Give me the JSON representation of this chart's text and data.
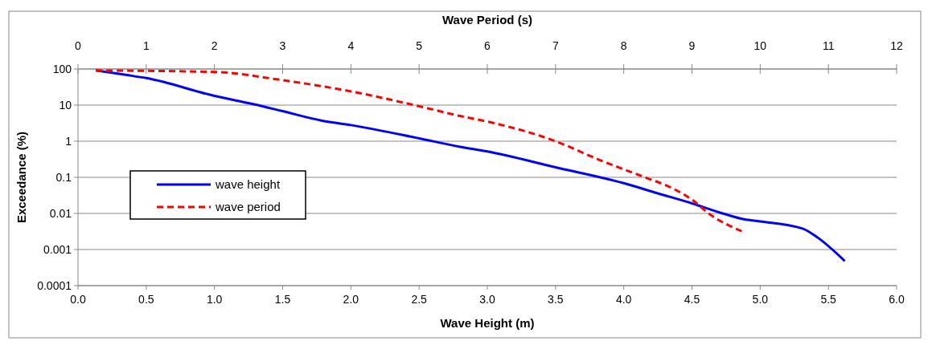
{
  "chart_data": {
    "type": "line",
    "xlabel": "Wave Height (m)",
    "x2label": "Wave Period (s)",
    "ylabel": "Exceedance (%)",
    "log": "y",
    "grid": "y",
    "legend": "left",
    "line_style": "solid",
    "marker": "none",
    "xlim": [
      0,
      6
    ],
    "xticks": [
      {
        "value": 0,
        "label": "0.0"
      },
      {
        "value": 0.5,
        "label": "0.5"
      },
      {
        "value": 1,
        "label": "1.0"
      },
      {
        "value": 1.5,
        "label": "1.5"
      },
      {
        "value": 2,
        "label": "2.0"
      },
      {
        "value": 2.5,
        "label": "2.5"
      },
      {
        "value": 3,
        "label": "3.0"
      },
      {
        "value": 3.5,
        "label": "3.5"
      },
      {
        "value": 4,
        "label": "4.0"
      },
      {
        "value": 4.5,
        "label": "4.5"
      },
      {
        "value": 5,
        "label": "5.0"
      },
      {
        "value": 5.5,
        "label": "5.5"
      },
      {
        "value": 6,
        "label": "6.0"
      }
    ],
    "x2lim": [
      0,
      12
    ],
    "x2ticks": [
      0,
      1,
      2,
      3,
      4,
      5,
      6,
      7,
      8,
      9,
      10,
      11,
      12
    ],
    "ylim": [
      0.0001,
      100
    ],
    "yticks": [
      0.0001,
      0.001,
      0.01,
      0.1,
      1,
      10,
      100
    ],
    "series": [
      {
        "name": "wave height",
        "color": "#0000ff",
        "x": [
          0.13,
          0.36,
          0.5,
          1.0,
          1.29,
          1.5,
          1.79,
          2.0,
          2.5,
          2.8,
          3.0,
          3.5,
          4.0,
          4.25,
          4.5,
          4.74,
          4.88,
          5.0,
          5.31,
          5.41,
          5.62
        ],
        "values": [
          91,
          68,
          56,
          18,
          10.5,
          6.8,
          3.7,
          2.8,
          1.2,
          0.7,
          0.52,
          0.19,
          0.069,
          0.036,
          0.019,
          0.0096,
          0.0069,
          0.006,
          0.0038,
          0.0023,
          0.00048
        ]
      },
      {
        "name": "wave period",
        "color": "#ff0000",
        "line_style": "dashed",
        "axis": "x2",
        "x": [
          0.26,
          2.0,
          3.0,
          4.0,
          5.0,
          5.6,
          6.0,
          7.0,
          7.65,
          8.28,
          8.71,
          9.0,
          9.26,
          9.73
        ],
        "values": [
          91,
          83,
          49,
          24,
          9.3,
          5,
          3.5,
          1.0,
          0.3,
          0.105,
          0.05,
          0.024,
          0.0095,
          0.0032
        ]
      }
    ]
  }
}
